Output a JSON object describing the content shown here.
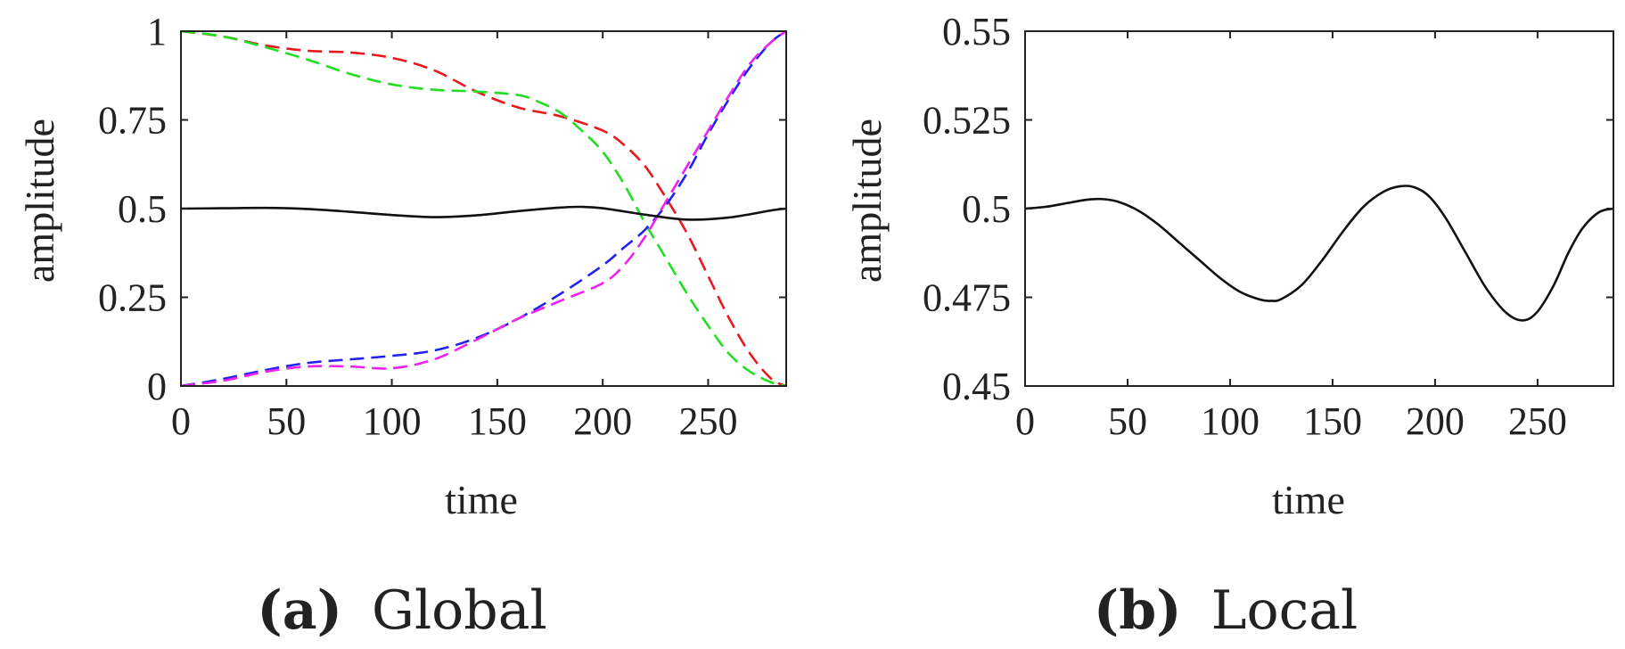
{
  "chart_data": [
    {
      "type": "line",
      "panel_tag": "(a)",
      "caption": "Global",
      "xlabel": "time",
      "ylabel": "amplitude",
      "xlim": [
        0,
        287
      ],
      "ylim": [
        0,
        1
      ],
      "xticks": [
        0,
        50,
        100,
        150,
        200,
        250
      ],
      "xtick_labels": [
        "0",
        "50",
        "100",
        "150",
        "200",
        "250"
      ],
      "yticks": [
        0,
        0.25,
        0.5,
        0.75,
        1
      ],
      "ytick_labels": [
        "0",
        "0.25",
        "0.5",
        "0.75",
        "1"
      ],
      "grid": false,
      "series": [
        {
          "name": "red",
          "color": "#e8191c",
          "style": "dashed",
          "x": [
            0,
            20,
            40,
            60,
            80,
            100,
            120,
            140,
            160,
            180,
            200,
            210,
            220,
            230,
            240,
            250,
            260,
            270,
            280,
            287
          ],
          "y": [
            1.0,
            0.985,
            0.96,
            0.945,
            0.94,
            0.925,
            0.89,
            0.83,
            0.785,
            0.76,
            0.72,
            0.68,
            0.62,
            0.53,
            0.43,
            0.31,
            0.19,
            0.09,
            0.02,
            0.0
          ]
        },
        {
          "name": "green",
          "color": "#22dd22",
          "style": "dashed",
          "x": [
            0,
            20,
            40,
            60,
            80,
            100,
            120,
            140,
            160,
            170,
            180,
            190,
            200,
            210,
            220,
            230,
            240,
            250,
            260,
            270,
            280,
            287
          ],
          "y": [
            1.0,
            0.985,
            0.955,
            0.92,
            0.88,
            0.85,
            0.835,
            0.83,
            0.82,
            0.8,
            0.77,
            0.72,
            0.66,
            0.57,
            0.46,
            0.36,
            0.26,
            0.17,
            0.09,
            0.04,
            0.01,
            0.0
          ]
        },
        {
          "name": "blue",
          "color": "#2222ee",
          "style": "dashed",
          "x": [
            0,
            20,
            40,
            60,
            80,
            100,
            120,
            140,
            160,
            180,
            200,
            210,
            220,
            230,
            240,
            250,
            260,
            270,
            280,
            287
          ],
          "y": [
            0.0,
            0.02,
            0.045,
            0.065,
            0.075,
            0.085,
            0.1,
            0.135,
            0.19,
            0.26,
            0.34,
            0.39,
            0.44,
            0.51,
            0.6,
            0.71,
            0.81,
            0.9,
            0.97,
            1.0
          ]
        },
        {
          "name": "magenta",
          "color": "#ee22ee",
          "style": "dashed",
          "x": [
            0,
            20,
            40,
            60,
            80,
            100,
            120,
            140,
            160,
            180,
            200,
            210,
            220,
            230,
            240,
            250,
            260,
            270,
            280,
            287
          ],
          "y": [
            0.0,
            0.015,
            0.04,
            0.055,
            0.055,
            0.05,
            0.075,
            0.13,
            0.19,
            0.24,
            0.29,
            0.34,
            0.42,
            0.52,
            0.62,
            0.72,
            0.82,
            0.91,
            0.97,
            1.0
          ]
        },
        {
          "name": "black",
          "color": "#111111",
          "style": "solid",
          "x": [
            0,
            20,
            40,
            60,
            80,
            100,
            120,
            140,
            160,
            180,
            190,
            200,
            220,
            240,
            260,
            280,
            287
          ],
          "y": [
            0.5,
            0.501,
            0.502,
            0.499,
            0.491,
            0.482,
            0.476,
            0.481,
            0.493,
            0.503,
            0.505,
            0.501,
            0.483,
            0.469,
            0.475,
            0.495,
            0.5
          ]
        }
      ]
    },
    {
      "type": "line",
      "panel_tag": "(b)",
      "caption": "Local",
      "xlabel": "time",
      "ylabel": "amplitude",
      "xlim": [
        0,
        287
      ],
      "ylim": [
        0.45,
        0.55
      ],
      "xticks": [
        0,
        50,
        100,
        150,
        200,
        250
      ],
      "xtick_labels": [
        "0",
        "50",
        "100",
        "150",
        "200",
        "250"
      ],
      "yticks": [
        0.45,
        0.475,
        0.5,
        0.525,
        0.55
      ],
      "ytick_labels": [
        "0.45",
        "0.475",
        "0.5",
        "0.525",
        "0.55"
      ],
      "grid": false,
      "series": [
        {
          "name": "black",
          "color": "#111111",
          "style": "solid",
          "x": [
            0,
            10,
            20,
            30,
            37,
            45,
            55,
            65,
            75,
            85,
            95,
            105,
            115,
            120,
            125,
            135,
            145,
            155,
            165,
            175,
            183,
            190,
            197,
            205,
            215,
            225,
            235,
            243,
            250,
            258,
            265,
            272,
            280,
            287
          ],
          "y": [
            0.5,
            0.5005,
            0.5015,
            0.5025,
            0.5027,
            0.502,
            0.4995,
            0.4955,
            0.4905,
            0.4855,
            0.4805,
            0.4765,
            0.4743,
            0.474,
            0.4745,
            0.4785,
            0.4855,
            0.4935,
            0.5005,
            0.5048,
            0.5063,
            0.506,
            0.5035,
            0.4975,
            0.4875,
            0.4775,
            0.4705,
            0.4685,
            0.471,
            0.4785,
            0.4875,
            0.4945,
            0.499,
            0.5
          ]
        }
      ]
    }
  ]
}
